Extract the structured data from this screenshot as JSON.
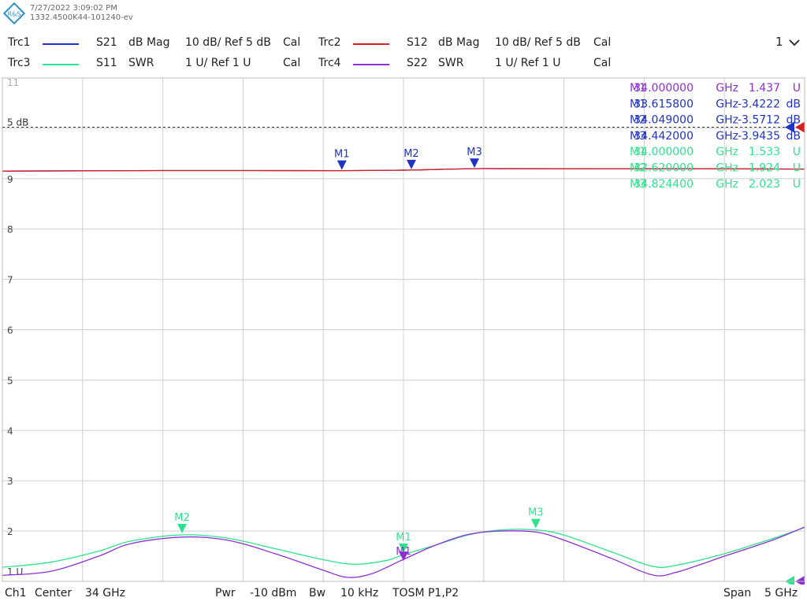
{
  "header": {
    "timestamp": "7/27/2022 3:09:02 PM",
    "device_id": "1332.4500K44-101240-ev",
    "logo_text": "R&S"
  },
  "legend": {
    "traces": [
      {
        "id": "Trc1",
        "param": "S21",
        "format": "dB Mag",
        "scale": "10 dB/ Ref 5 dB",
        "cal": "Cal",
        "color": "#1f33c4"
      },
      {
        "id": "Trc2",
        "param": "S12",
        "format": "dB Mag",
        "scale": "10 dB/ Ref 5 dB",
        "cal": "Cal",
        "color": "#d81e1e"
      },
      {
        "id": "Trc3",
        "param": "S11",
        "format": "SWR",
        "scale": "1 U/ Ref 1 U",
        "cal": "Cal",
        "color": "#2ee38e"
      },
      {
        "id": "Trc4",
        "param": "S22",
        "format": "SWR",
        "scale": "1 U/ Ref 1 U",
        "cal": "Cal",
        "color": "#8e2ed6"
      }
    ],
    "dropdown_label": "1",
    "dropdown_icon": "chevron-down-icon"
  },
  "colors": {
    "grid": "#cfcfcf",
    "trc1": "#1f33c4",
    "trc2": "#d81e1e",
    "trc3": "#2ee38e",
    "trc4": "#8e2ed6"
  },
  "chart_data": {
    "type": "line",
    "x_range_ghz": [
      31.5,
      36.5
    ],
    "y_range_swr": [
      1,
      11
    ],
    "y_tick_labels": [
      "11",
      "9",
      "8",
      "7",
      "6",
      "5",
      "4",
      "3",
      "2",
      "1 U"
    ],
    "ref_label": "5 dB",
    "grid": true,
    "series": [
      {
        "name": "Trc1",
        "x": [
          31.5,
          32.5,
          33.0,
          33.6158,
          34.049,
          34.442,
          35.0,
          36.0,
          36.5
        ],
        "y_db": [
          -3.3,
          -3.45,
          -3.45,
          -3.4222,
          -3.5712,
          -3.9435,
          -3.93,
          -3.9,
          -3.85
        ]
      },
      {
        "name": "Trc2",
        "x": [
          31.5,
          32.5,
          33.0,
          33.6158,
          34.049,
          34.442,
          35.0,
          36.0,
          36.5
        ],
        "y_db": [
          -3.3,
          -3.45,
          -3.45,
          -3.4222,
          -3.5712,
          -3.9435,
          -3.93,
          -3.9,
          -3.85
        ]
      },
      {
        "name": "Trc3",
        "x": [
          31.5,
          31.8,
          32.1,
          32.3,
          32.62,
          32.9,
          33.2,
          33.5,
          33.7,
          33.9,
          34.0,
          34.2,
          34.4,
          34.6,
          34.824,
          35.0,
          35.3,
          35.55,
          35.7,
          36.0,
          36.3,
          36.5
        ],
        "y": [
          1.28,
          1.38,
          1.6,
          1.8,
          1.924,
          1.86,
          1.65,
          1.43,
          1.34,
          1.42,
          1.533,
          1.72,
          1.92,
          2.02,
          2.023,
          1.92,
          1.58,
          1.3,
          1.32,
          1.55,
          1.85,
          2.07
        ]
      },
      {
        "name": "Trc4",
        "x": [
          31.5,
          31.8,
          32.1,
          32.3,
          32.62,
          32.9,
          33.2,
          33.5,
          33.65,
          33.8,
          34.0,
          34.2,
          34.4,
          34.6,
          34.824,
          35.0,
          35.3,
          35.55,
          35.7,
          36.0,
          36.3,
          36.5
        ],
        "y": [
          1.12,
          1.2,
          1.5,
          1.75,
          1.88,
          1.82,
          1.55,
          1.22,
          1.08,
          1.15,
          1.437,
          1.72,
          1.93,
          2.0,
          1.98,
          1.82,
          1.45,
          1.13,
          1.18,
          1.5,
          1.82,
          2.08
        ]
      }
    ],
    "markers": {
      "trc1": [
        {
          "label": "M1",
          "x": 33.6158,
          "y_db": -3.4222
        },
        {
          "label": "M2",
          "x": 34.049,
          "y_db": -3.5712
        },
        {
          "label": "M3",
          "x": 34.442,
          "y_db": -3.9435
        }
      ],
      "trc3": [
        {
          "label": "M1",
          "x": 34.0,
          "y": 1.533
        },
        {
          "label": "M2",
          "x": 32.62,
          "y": 1.924
        },
        {
          "label": "M3",
          "x": 34.824,
          "y": 2.023
        }
      ],
      "trc4": [
        {
          "label": "M1",
          "x": 34.0,
          "y": 1.437
        }
      ]
    },
    "marker_readouts": [
      {
        "label": "M1",
        "freq": "34.000000",
        "unit": "GHz",
        "value": "1.437",
        "vunit": "U",
        "color": "#8e2ed6"
      },
      {
        "label": "M1",
        "freq": "33.615800",
        "unit": "GHz",
        "value": "-3.4222",
        "vunit": "dB",
        "color": "#1f33c4"
      },
      {
        "label": "M2",
        "freq": "34.049000",
        "unit": "GHz",
        "value": "-3.5712",
        "vunit": "dB",
        "color": "#1f33c4"
      },
      {
        "label": "M3",
        "freq": "34.442000",
        "unit": "GHz",
        "value": "-3.9435",
        "vunit": "dB",
        "color": "#1f33c4"
      },
      {
        "label": "M1",
        "freq": "34.000000",
        "unit": "GHz",
        "value": "1.533",
        "vunit": "U",
        "color": "#2ee38e"
      },
      {
        "label": "M2",
        "freq": "32.620000",
        "unit": "GHz",
        "value": "1.924",
        "vunit": "U",
        "color": "#2ee38e"
      },
      {
        "label": "M3",
        "freq": "34.824400",
        "unit": "GHz",
        "value": "2.023",
        "vunit": "U",
        "color": "#2ee38e"
      }
    ]
  },
  "footer": {
    "channel": "Ch1",
    "center_label": "Center",
    "center_value": "34 GHz",
    "pwr_label": "Pwr",
    "pwr_value": "-10 dBm",
    "bw_label": "Bw",
    "bw_value": "10 kHz",
    "cal_type": "TOSM P1,P2",
    "span_label": "Span",
    "span_value": "5 GHz"
  }
}
